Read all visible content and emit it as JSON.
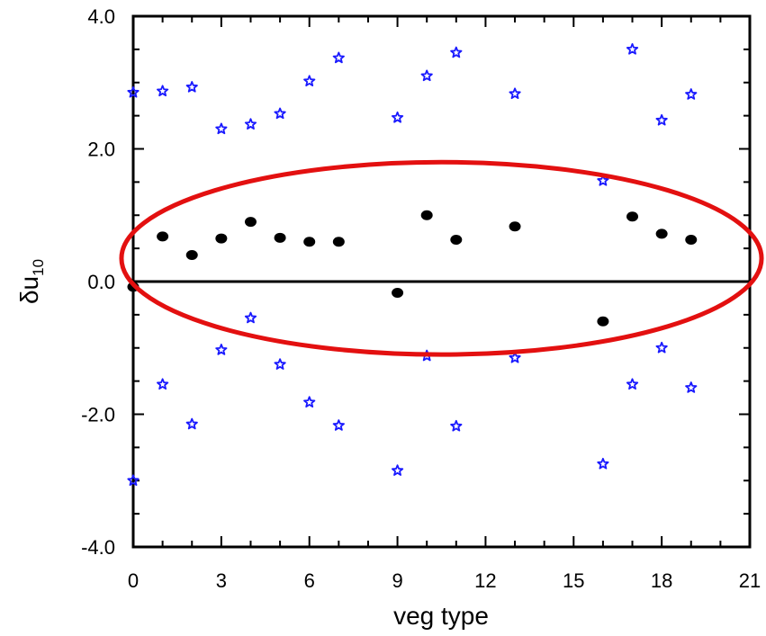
{
  "chart_data": {
    "type": "scatter",
    "xlabel": "veg type",
    "ylabel": {
      "base": "δu",
      "sub": "10"
    },
    "xlim": [
      0,
      21
    ],
    "ylim": [
      -4,
      4
    ],
    "x_ticks": [
      "0",
      "3",
      "6",
      "9",
      "12",
      "15",
      "18",
      "21"
    ],
    "y_ticks": [
      "-4.0",
      "-2.0",
      "0.0",
      "2.0",
      "4.0"
    ],
    "zero_line": true,
    "grid": false,
    "series": [
      {
        "marker": "star",
        "color": "#1a1aff",
        "points": [
          [
            0,
            2.85
          ],
          [
            1,
            2.87
          ],
          [
            2,
            2.93
          ],
          [
            3,
            2.3
          ],
          [
            4,
            2.37
          ],
          [
            5,
            2.53
          ],
          [
            6,
            3.02
          ],
          [
            7,
            3.37
          ],
          [
            9,
            2.47
          ],
          [
            10,
            3.1
          ],
          [
            11,
            3.45
          ],
          [
            13,
            2.83
          ],
          [
            16,
            1.52
          ],
          [
            17,
            3.5
          ],
          [
            18,
            2.43
          ],
          [
            19,
            2.82
          ]
        ]
      },
      {
        "marker": "star",
        "color": "#1a1aff",
        "points": [
          [
            0,
            -3.0
          ],
          [
            1,
            -1.55
          ],
          [
            2,
            -2.15
          ],
          [
            3,
            -1.03
          ],
          [
            4,
            -0.55
          ],
          [
            5,
            -1.25
          ],
          [
            6,
            -1.82
          ],
          [
            7,
            -2.17
          ],
          [
            9,
            -2.85
          ],
          [
            10,
            -1.12
          ],
          [
            11,
            -2.18
          ],
          [
            13,
            -1.15
          ],
          [
            16,
            -2.75
          ],
          [
            17,
            -1.55
          ],
          [
            18,
            -1.0
          ],
          [
            19,
            -1.6
          ]
        ]
      },
      {
        "marker": "dot",
        "color": "#000000",
        "points": [
          [
            0,
            -0.08
          ],
          [
            1,
            0.68
          ],
          [
            2,
            0.4
          ],
          [
            3,
            0.65
          ],
          [
            4,
            0.9
          ],
          [
            5,
            0.66
          ],
          [
            6,
            0.6
          ],
          [
            7,
            0.6
          ],
          [
            9,
            -0.17
          ],
          [
            10,
            1.0
          ],
          [
            11,
            0.63
          ],
          [
            13,
            0.83
          ],
          [
            16,
            -0.6
          ],
          [
            17,
            0.98
          ],
          [
            18,
            0.72
          ],
          [
            19,
            0.63
          ]
        ]
      }
    ],
    "annotation": {
      "shape": "ellipse",
      "color": "#e31010",
      "center": [
        10.5,
        0.35
      ],
      "radii": [
        10.9,
        1.45
      ]
    }
  }
}
